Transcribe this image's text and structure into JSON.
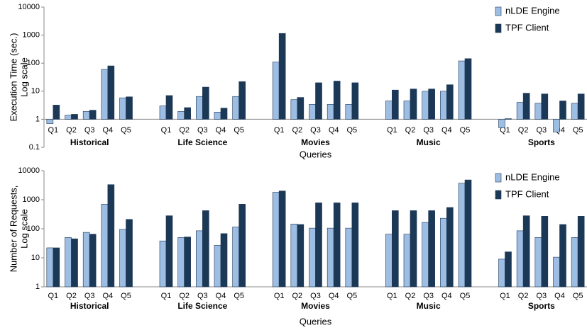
{
  "chart_data": [
    {
      "type": "bar",
      "log_scale": true,
      "ylabel": [
        "Execution Time (sec.)",
        "Log scale"
      ],
      "xlabel": "Queries",
      "groups": [
        "Historical",
        "Life Science",
        "Movies",
        "Music",
        "Sports"
      ],
      "categories": [
        "Q1",
        "Q2",
        "Q3",
        "Q4",
        "Q5",
        "Q1",
        "Q2",
        "Q3",
        "Q4",
        "Q5",
        "Q1",
        "Q2",
        "Q3",
        "Q4",
        "Q5",
        "Q1",
        "Q2",
        "Q3",
        "Q4",
        "Q5",
        "Q1",
        "Q2",
        "Q3",
        "Q4",
        "Q5"
      ],
      "series": [
        {
          "name": "nLDE Engine",
          "color": "#9dbde3",
          "values": [
            0.7,
            1.4,
            1.9,
            60,
            5.8,
            3,
            1.9,
            6.5,
            1.8,
            6.5,
            110,
            5,
            3.4,
            3.4,
            3.4,
            4.5,
            4.5,
            10,
            10,
            120,
            0.5,
            4,
            3.7,
            0.35,
            3.7
          ]
        },
        {
          "name": "TPF Client",
          "color": "#1c3857",
          "values": [
            3.2,
            1.5,
            2.1,
            80,
            6.3,
            7,
            2.6,
            14,
            2.5,
            22,
            1150,
            6,
            20,
            23,
            20,
            11,
            12,
            12,
            17,
            145,
            1.05,
            8.5,
            8,
            4.5,
            8
          ]
        }
      ],
      "ylim": [
        0.1,
        10000
      ],
      "yticks": [
        0.1,
        1,
        10,
        100,
        1000,
        10000
      ],
      "legend": "upper right"
    },
    {
      "type": "bar",
      "log_scale": true,
      "ylabel": [
        "Number of Requests,",
        "Log scale"
      ],
      "xlabel": "Queries",
      "groups": [
        "Historical",
        "Life Science",
        "Movies",
        "Music",
        "Sports"
      ],
      "categories": [
        "Q1",
        "Q2",
        "Q3",
        "Q4",
        "Q5",
        "Q1",
        "Q2",
        "Q3",
        "Q4",
        "Q5",
        "Q1",
        "Q2",
        "Q3",
        "Q4",
        "Q5",
        "Q1",
        "Q2",
        "Q3",
        "Q4",
        "Q5",
        "Q1",
        "Q2",
        "Q3",
        "Q4",
        "Q5"
      ],
      "series": [
        {
          "name": "nLDE Engine",
          "color": "#9dbde3",
          "values": [
            22,
            50,
            75,
            700,
            95,
            38,
            50,
            85,
            27,
            115,
            1800,
            145,
            105,
            105,
            105,
            65,
            65,
            165,
            230,
            3700,
            9,
            85,
            50,
            10.5,
            50
          ]
        },
        {
          "name": "TPF Client",
          "color": "#1c3857",
          "values": [
            22,
            45,
            65,
            3300,
            210,
            280,
            52,
            420,
            68,
            700,
            2000,
            140,
            780,
            780,
            780,
            420,
            420,
            420,
            540,
            4800,
            16,
            280,
            270,
            140,
            270
          ]
        }
      ],
      "ylim": [
        1,
        10000
      ],
      "yticks": [
        1,
        10,
        100,
        1000,
        10000
      ],
      "legend": "upper right"
    }
  ]
}
